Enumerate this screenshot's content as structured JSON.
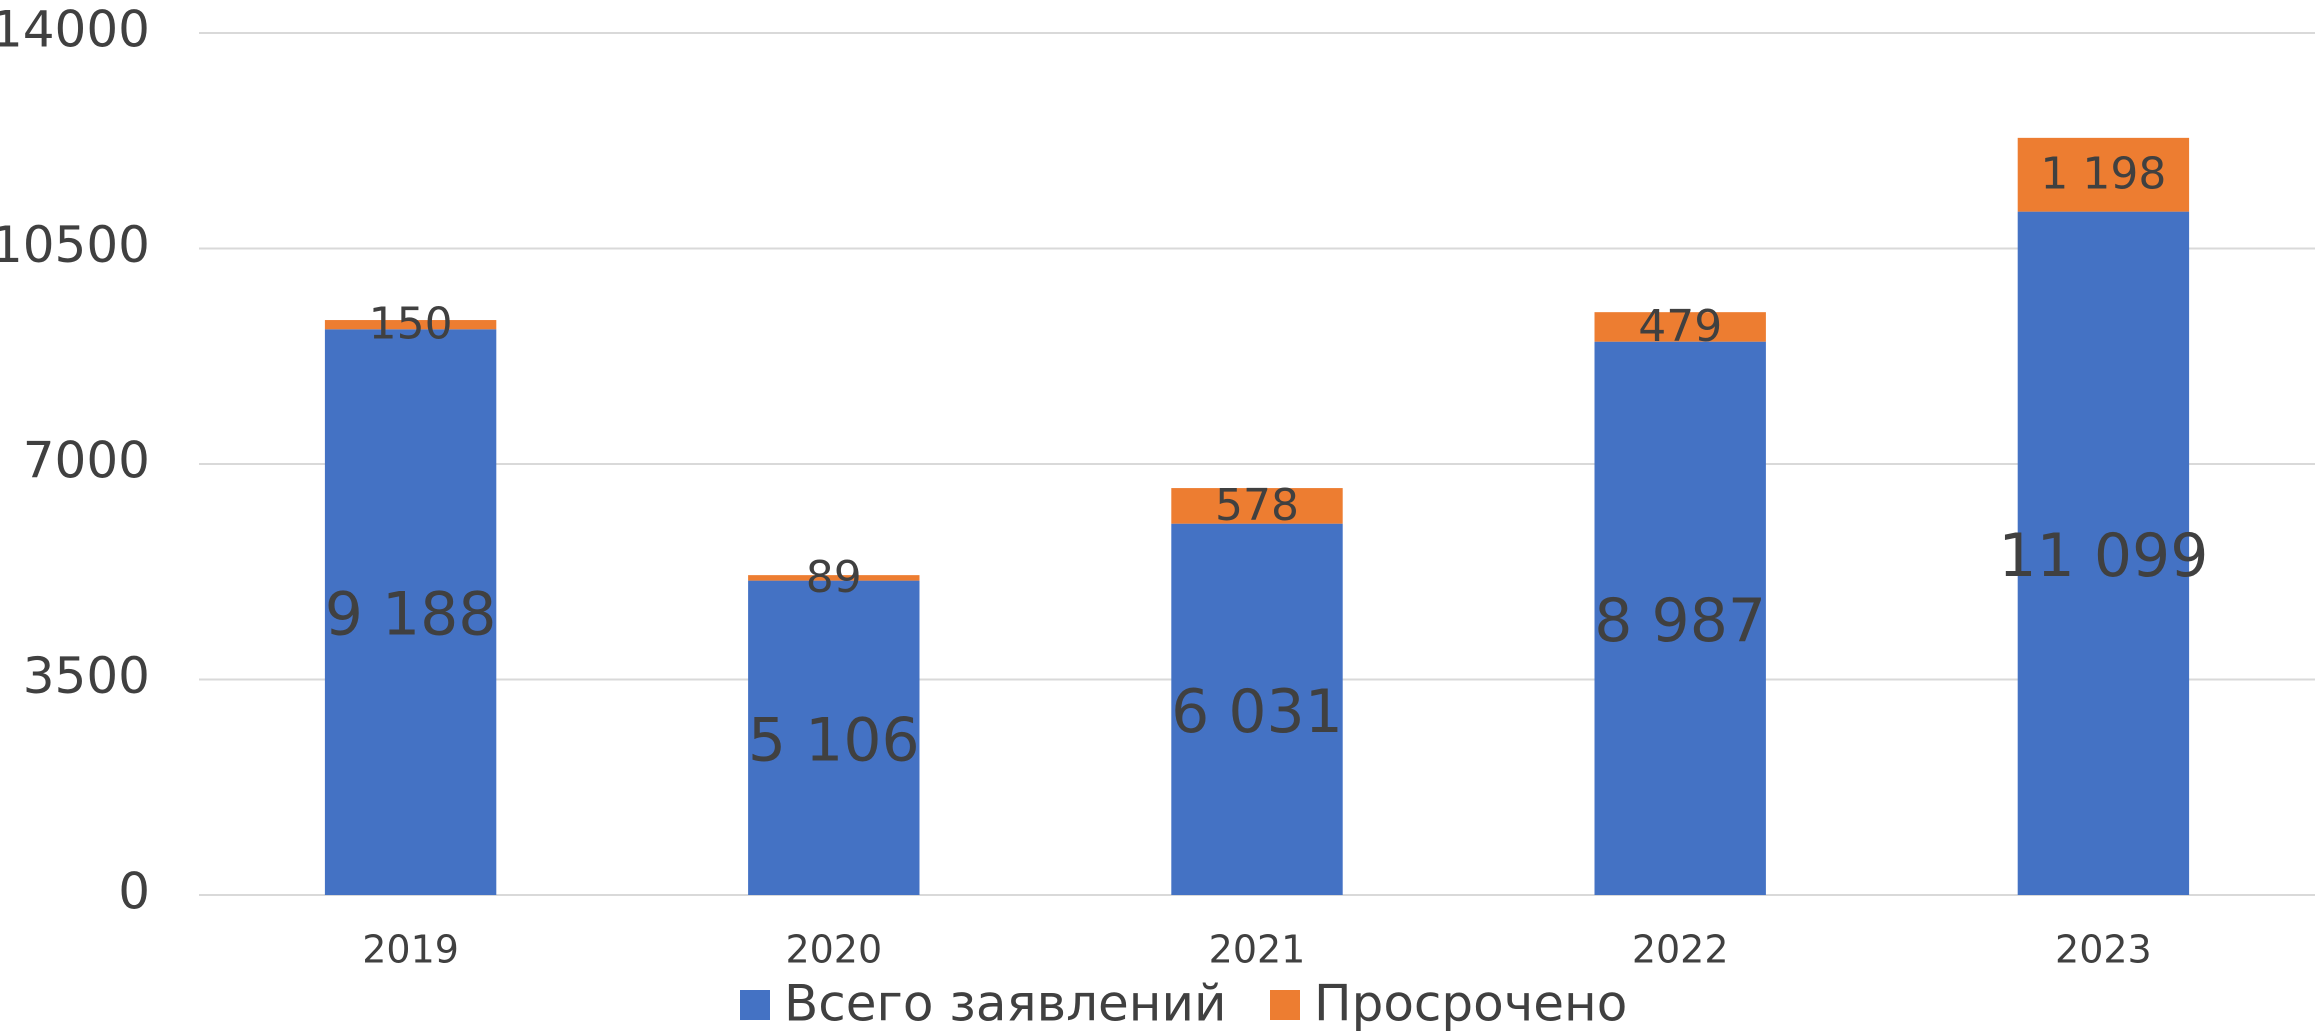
{
  "chart_data": {
    "type": "stacked_bar",
    "categories": [
      "2019",
      "2020",
      "2021",
      "2022",
      "2023"
    ],
    "series": [
      {
        "name": "Всего заявлений",
        "color": "#4472c4",
        "values": [
          9188,
          5106,
          6031,
          8987,
          11099
        ],
        "value_labels": [
          "9 188",
          "5 106",
          "6 031",
          "8 987",
          "11 099"
        ]
      },
      {
        "name": "Просрочено",
        "color": "#ed7d31",
        "values": [
          150,
          89,
          578,
          479,
          1198
        ],
        "value_labels": [
          "150",
          "89",
          "578",
          "479",
          "1 198"
        ]
      }
    ],
    "ylim": [
      0,
      14000
    ],
    "yticks": [
      0,
      3500,
      7000,
      10500,
      14000
    ],
    "grid": true,
    "legend": "bottom"
  }
}
